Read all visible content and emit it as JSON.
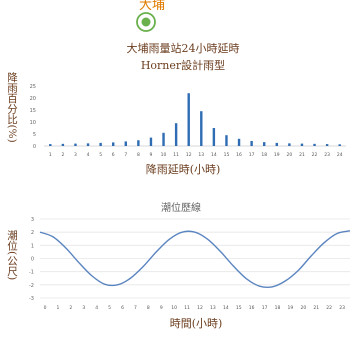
{
  "station_label": "大埔",
  "station_marker_icon": "station-target-icon",
  "colors": {
    "station_label": "#e07b00",
    "marker": "#6ab04c",
    "title": "#6b3d1e",
    "bar": "#2e6db4",
    "line": "#5b85c0",
    "axis_text": "#666666",
    "dark_text": "#333333"
  },
  "chart_data": [
    {
      "type": "bar",
      "title": "大埔雨量站24小時延時",
      "subtitle": "Horner設計雨型",
      "xlabel": "降雨延時(小時)",
      "ylabel": "降雨百分比(%)",
      "ylim": [
        0,
        25
      ],
      "yticks": [
        "0",
        "5",
        "10",
        "15",
        "20",
        "25"
      ],
      "categories": [
        "1",
        "2",
        "3",
        "4",
        "5",
        "6",
        "7",
        "8",
        "9",
        "10",
        "11",
        "12",
        "13",
        "14",
        "15",
        "16",
        "17",
        "18",
        "19",
        "20",
        "21",
        "22",
        "23",
        "24"
      ],
      "values": [
        0.8,
        0.9,
        1.0,
        1.1,
        1.3,
        1.5,
        1.9,
        2.4,
        3.5,
        5.5,
        9.5,
        22.0,
        14.5,
        7.5,
        4.5,
        3.0,
        2.1,
        1.6,
        1.3,
        1.1,
        1.0,
        0.9,
        0.8,
        0.7
      ],
      "grid": false,
      "legend": "none"
    },
    {
      "type": "line",
      "title": "潮位歷線",
      "xlabel": "時間(小時)",
      "ylabel": "潮位(公尺)",
      "ylim": [
        -3,
        3
      ],
      "yticks": [
        "3",
        "2",
        "1",
        "0",
        "-1",
        "-2",
        "-3"
      ],
      "x": [
        "0",
        "1",
        "2",
        "3",
        "4",
        "5",
        "6",
        "7",
        "8",
        "9",
        "10",
        "11",
        "12",
        "13",
        "14",
        "15",
        "16",
        "17",
        "18",
        "19",
        "20",
        "21",
        "22",
        "23",
        "24"
      ],
      "values": [
        2.0,
        1.65,
        0.8,
        -0.3,
        -1.3,
        -1.95,
        -2.0,
        -1.5,
        -0.6,
        0.5,
        1.45,
        2.0,
        2.0,
        1.45,
        0.5,
        -0.6,
        -1.55,
        -2.1,
        -2.15,
        -1.7,
        -0.9,
        0.2,
        1.2,
        1.9,
        2.1
      ],
      "grid": true,
      "legend": "none"
    }
  ]
}
